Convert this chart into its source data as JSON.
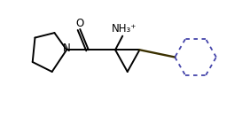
{
  "background": "#ffffff",
  "line_color": "#000000",
  "dark_bond_color": "#3a3000",
  "dashed_color": "#4444aa",
  "bond_lw": 1.4,
  "dashed_lw": 1.3,
  "figsize": [
    2.82,
    1.4
  ],
  "dpi": 100,
  "nh3_label": "NH₃⁺",
  "n_label": "N",
  "o_label": "O",
  "font_size": 8.5,
  "xlim": [
    0,
    10
  ],
  "ylim": [
    0,
    5
  ]
}
